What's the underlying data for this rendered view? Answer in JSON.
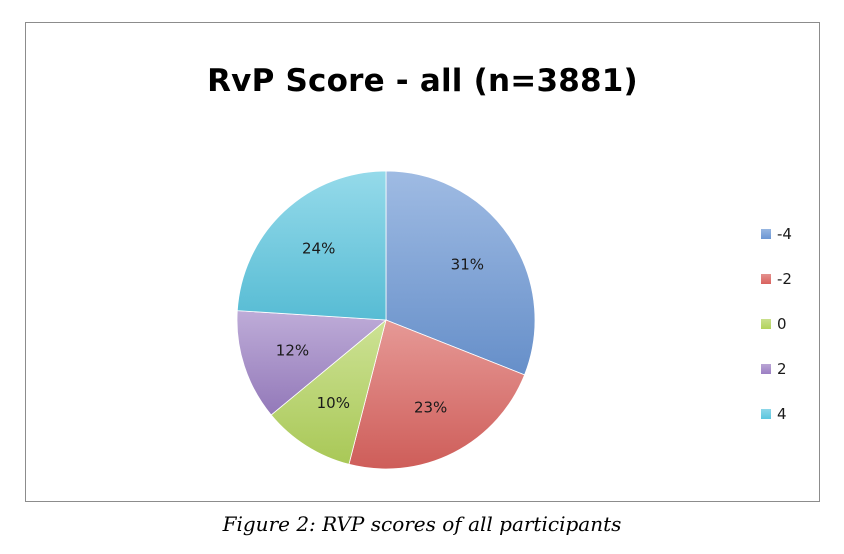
{
  "chart_data": {
    "type": "pie",
    "title": "RvP Score - all (n=3881)",
    "categories": [
      "-4",
      "-2",
      "0",
      "2",
      "4"
    ],
    "values": [
      31,
      23,
      10,
      12,
      24
    ],
    "labels": [
      "31%",
      "23%",
      "10%",
      "12%",
      "24%"
    ],
    "colors": [
      "#6b96d4",
      "#d9625e",
      "#b2d35c",
      "#9b7fc3",
      "#5cc6df"
    ],
    "legend": {
      "position": "right",
      "entries": [
        "-4",
        "-2",
        "0",
        "2",
        "4"
      ]
    },
    "start_angle": "12 o'clock",
    "direction": "clockwise"
  },
  "caption": "Figure 2: RVP scores of all participants"
}
